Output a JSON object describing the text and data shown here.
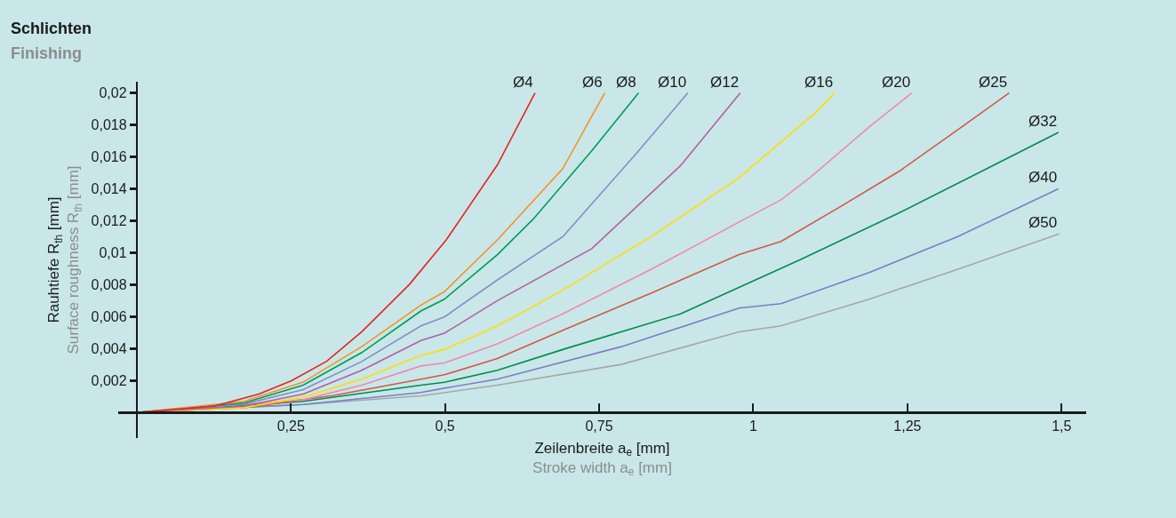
{
  "chart_data": {
    "type": "line",
    "title": "Schlichten",
    "subtitle": "Finishing",
    "xlabel": "Zeilenbreite a$_{e}$ [mm]\nStroke width a$_{e}$ [mm]",
    "ylabel": "Rauhtiefe R$_{th}$ [mm]\nSurface roughness R$_{th}$ [mm]",
    "xlim": [
      -0.03,
      1.54
    ],
    "ylim": [
      -0.0016,
      0.0207
    ],
    "xticks": [
      {
        "value": 0.25,
        "label": "0,25"
      },
      {
        "value": 0.5,
        "label": "0,5"
      },
      {
        "value": 0.75,
        "label": "0,75"
      },
      1,
      {
        "value": 1.25,
        "label": "1,25"
      },
      {
        "value": 1.5,
        "label": "1,5"
      }
    ],
    "yticks": [
      {
        "value": 0.002,
        "label": "0,002"
      },
      {
        "value": 0.004,
        "label": "0,004"
      },
      {
        "value": 0.006,
        "label": "0,006"
      },
      {
        "value": 0.008,
        "label": "0,008"
      },
      {
        "value": 0.01,
        "label": "0,01"
      },
      {
        "value": 0.012,
        "label": "0,012"
      },
      {
        "value": 0.014,
        "label": "0,014"
      },
      {
        "value": 0.016,
        "label": "0,016"
      },
      {
        "value": 0.018,
        "label": "0,018"
      },
      {
        "value": 0.02,
        "label": "0,02"
      }
    ],
    "grid": false,
    "marker": "none",
    "line_style": "solid",
    "series": [
      {
        "name": "Ø4",
        "color": "#e52421",
        "x": [
          0,
          0.126,
          0.198,
          0.251,
          0.308,
          0.365,
          0.442,
          0.502,
          0.585,
          0.646
        ],
        "values": [
          0,
          0.0004,
          0.00115,
          0.00199,
          0.0032,
          0.00505,
          0.008,
          0.0108,
          0.0155,
          0.02
        ]
      },
      {
        "name": "Ø6",
        "color": "#f39325",
        "x": [
          0,
          0.174,
          0.27,
          0.365,
          0.461,
          0.499,
          0.585,
          0.691,
          0.759
        ],
        "values": [
          0,
          0.00069,
          0.0019,
          0.00412,
          0.00672,
          0.00756,
          0.0108,
          0.01526,
          0.02
        ]
      },
      {
        "name": "Ø8",
        "color": "#009a5a",
        "x": [
          0,
          0.174,
          0.27,
          0.365,
          0.461,
          0.499,
          0.585,
          0.643,
          0.738,
          0.814
        ],
        "values": [
          0,
          0.0006,
          0.00171,
          0.00375,
          0.00635,
          0.00709,
          0.00988,
          0.0121,
          0.01638,
          0.02
        ]
      },
      {
        "name": "Ø10",
        "color": "#8a8bc4",
        "x": [
          0,
          0.174,
          0.27,
          0.365,
          0.461,
          0.499,
          0.585,
          0.691,
          0.81,
          0.894
        ],
        "values": [
          0,
          0.00052,
          0.00143,
          0.00319,
          0.00542,
          0.00598,
          0.0083,
          0.011,
          0.0162,
          0.02
        ]
      },
      {
        "name": "Ø12",
        "color": "#b25ea8",
        "x": [
          0,
          0.174,
          0.27,
          0.365,
          0.461,
          0.499,
          0.585,
          0.738,
          0.882,
          0.979
        ],
        "values": [
          0,
          0.0004,
          0.00115,
          0.00264,
          0.0045,
          0.00496,
          0.007,
          0.01025,
          0.01545,
          0.02
        ]
      },
      {
        "name": "Ø16",
        "color": "#ffdd00",
        "x": [
          0,
          0.174,
          0.27,
          0.365,
          0.461,
          0.499,
          0.585,
          0.691,
          0.834,
          0.977,
          1.102,
          1.132
        ],
        "values": [
          0,
          0.0003,
          0.00096,
          0.00208,
          0.00357,
          0.00394,
          0.00542,
          0.00765,
          0.011,
          0.0147,
          0.0188,
          0.02
        ]
      },
      {
        "name": "Ø20",
        "color": "#f088b5",
        "x": [
          0,
          0.27,
          0.365,
          0.461,
          0.499,
          0.585,
          0.691,
          0.834,
          0.977,
          1.045,
          1.092,
          1.188,
          1.257
        ],
        "values": [
          0,
          0.0008,
          0.00171,
          0.00291,
          0.0031,
          0.0043,
          0.00617,
          0.00895,
          0.01192,
          0.01331,
          0.0147,
          0.01787,
          0.02
        ]
      },
      {
        "name": "Ø25",
        "color": "#cc5b45",
        "x": [
          0,
          0.174,
          0.318,
          0.461,
          0.499,
          0.585,
          0.691,
          0.834,
          0.977,
          1.045,
          1.14,
          1.236,
          1.331,
          1.415
        ],
        "values": [
          0,
          0.0003,
          0.00106,
          0.00208,
          0.00236,
          0.00338,
          0.00514,
          0.00747,
          0.00988,
          0.01071,
          0.01285,
          0.01508,
          0.01768,
          0.02
        ]
      },
      {
        "name": "Ø32",
        "color": "#008c4f",
        "x": [
          0,
          0.27,
          0.461,
          0.499,
          0.585,
          0.691,
          0.882,
          1.073,
          1.236,
          1.379,
          1.495
        ],
        "values": [
          0,
          0.00069,
          0.00171,
          0.00189,
          0.00264,
          0.00394,
          0.00617,
          0.00951,
          0.01248,
          0.01526,
          0.01753
        ]
      },
      {
        "name": "Ø40",
        "color": "#7b7fc4",
        "x": [
          0,
          0.27,
          0.461,
          0.499,
          0.585,
          0.786,
          0.977,
          1.045,
          1.188,
          1.331,
          1.495
        ],
        "values": [
          0,
          0.0005,
          0.00125,
          0.00152,
          0.00208,
          0.00412,
          0.00653,
          0.00681,
          0.00876,
          0.011,
          0.014
        ]
      },
      {
        "name": "Ø50",
        "color": "#a6a6a6",
        "x": [
          0,
          0.27,
          0.461,
          0.499,
          0.585,
          0.786,
          0.977,
          1.045,
          1.188,
          1.331,
          1.496
        ],
        "values": [
          0,
          0.0005,
          0.00104,
          0.00124,
          0.00171,
          0.00301,
          0.00505,
          0.00542,
          0.00709,
          0.00895,
          0.01118
        ]
      }
    ]
  }
}
